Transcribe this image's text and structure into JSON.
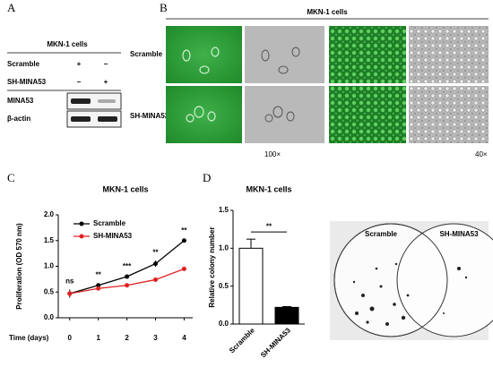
{
  "panels": {
    "A": {
      "label": "A",
      "title": "MKN-1 cells",
      "rows": [
        {
          "name": "Scramble",
          "values": [
            "+",
            "−"
          ]
        },
        {
          "name": "SH-MINA53",
          "values": [
            "−",
            "+"
          ]
        }
      ],
      "blots": [
        "MINA53",
        "β-actin"
      ]
    },
    "B": {
      "label": "B",
      "title": "MKN-1 cells",
      "rows": [
        "Scramble",
        "SH-MINA53"
      ],
      "magnifications": [
        "100×",
        "40×"
      ]
    },
    "C": {
      "label": "C"
    },
    "D": {
      "label": "D",
      "images": [
        "Scramble",
        "SH-MINA53"
      ]
    }
  },
  "chart_data": [
    {
      "type": "line",
      "title": "MKN-1 cells",
      "xlabel": "Time (days)",
      "ylabel": "Proliferation (OD 570 nm)",
      "x": [
        0,
        1,
        2,
        3,
        4
      ],
      "xlim": [
        -0.4,
        4.3
      ],
      "xticks": [
        0,
        1,
        2,
        3,
        4
      ],
      "ylim": [
        0,
        2
      ],
      "yticks": [
        {
          "value": 0,
          "label": "0.0"
        },
        {
          "value": 0.5,
          "label": "0.5"
        },
        {
          "value": 1,
          "label": "1.0"
        },
        {
          "value": 1.5,
          "label": "1.5"
        },
        {
          "value": 2,
          "label": "2.0"
        }
      ],
      "series": [
        {
          "name": "Scramble",
          "color": "#000000",
          "values": [
            0.47,
            0.63,
            0.8,
            1.05,
            1.5
          ],
          "errors": [
            0.08,
            0.04,
            0.04,
            0.06,
            0.03
          ]
        },
        {
          "name": "SH-MINA53",
          "color": "#e02020",
          "values": [
            0.47,
            0.57,
            0.63,
            0.74,
            0.95
          ],
          "errors": [
            0.06,
            0.03,
            0.03,
            0.03,
            0.03
          ]
        }
      ],
      "annotations": [
        "ns",
        "**",
        "***",
        "**",
        "**"
      ]
    },
    {
      "type": "bar",
      "title": "MKN-1 cells",
      "ylabel": "Relative colony number",
      "categories": [
        "Scramble",
        "SH-MINA53"
      ],
      "values": [
        1.0,
        0.22
      ],
      "errors": [
        0.12,
        0.01
      ],
      "colors": [
        "#ffffff",
        "#000000"
      ],
      "ylim": [
        0,
        1.5
      ],
      "yticks": [
        {
          "value": 0,
          "label": "0.0"
        },
        {
          "value": 0.5,
          "label": "0.5"
        },
        {
          "value": 1,
          "label": "1.0"
        },
        {
          "value": 1.5,
          "label": "1.5"
        }
      ],
      "annotation": "**"
    }
  ]
}
